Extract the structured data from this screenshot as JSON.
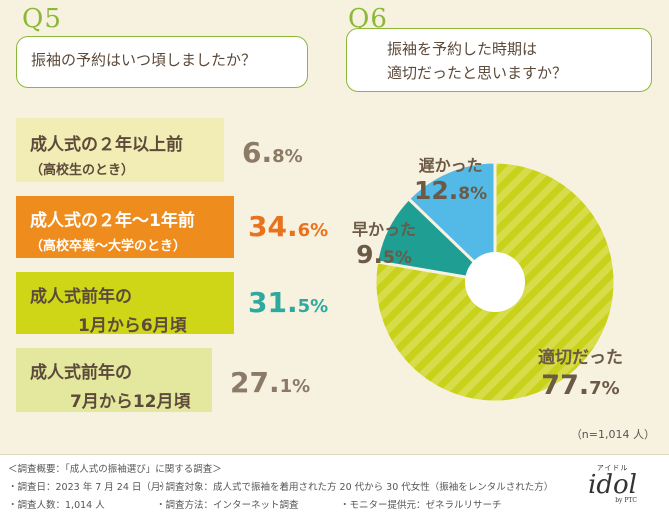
{
  "q5": {
    "tag": "Q5",
    "question": "振袖の予約はいつ頃しましたか？",
    "rows": [
      {
        "label1": "成人式の２年以上前",
        "label2": "（高校生のとき）",
        "pct_int": "6.",
        "pct_dec": "8%",
        "value": 6.8,
        "bar_color": "#f1edb4",
        "pct_color": "#8a7a66"
      },
      {
        "label1": "成人式の２年〜1年前",
        "label2": "（高校卒業〜大学のとき）",
        "pct_int": "34.",
        "pct_dec": "6%",
        "value": 34.6,
        "bar_color": "#ef8c1e",
        "pct_color": "#e8731c"
      },
      {
        "label1": "成人式前年の",
        "label2": "1月から6月頃",
        "pct_int": "31.",
        "pct_dec": "5%",
        "value": 31.5,
        "bar_color": "#cfd617",
        "pct_color": "#2ea99d"
      },
      {
        "label1": "成人式前年の",
        "label2": "7月から12月頃",
        "pct_int": "27.",
        "pct_dec": "1%",
        "value": 27.1,
        "bar_color": "#e4e89e",
        "pct_color": "#8a7a66"
      }
    ]
  },
  "q6": {
    "tag": "Q6",
    "question_line1": "振袖を予約した時期は",
    "question_line2": "適切だったと思いますか？"
  },
  "chart_data": {
    "type": "pie",
    "title": "振袖を予約した時期は適切だったと思いますか？",
    "categories": [
      "適切だった",
      "早かった",
      "遅かった"
    ],
    "values": [
      77.7,
      9.5,
      12.8
    ],
    "colors": [
      "#c9d21a",
      "#1f9e94",
      "#53b9e6"
    ],
    "labels_int": [
      "77.",
      "9.",
      "12."
    ],
    "labels_dec": [
      "7%",
      "5%",
      "8%"
    ],
    "donut": true
  },
  "note": "（n=1,014 人）",
  "footer": {
    "summary": "＜調査概要：「成人式の振袖選び」に関する調査＞",
    "date": "・調査日：2023 年 7 月 24 日（月）",
    "target": "・調査対象：成人式で振袖を着用された方 20 代から 30 代女性（振袖をレンタルされた方）",
    "count": "・調査人数：1,014 人",
    "method": "・調査方法：インターネット調査",
    "provider": "・モニター提供元：ゼネラルリサーチ",
    "logo_top": "アイドル",
    "logo": "idol",
    "logo_sub": "by PTC"
  },
  "theme": {
    "accent": "#8cb83a",
    "background": "#f7f1df"
  }
}
